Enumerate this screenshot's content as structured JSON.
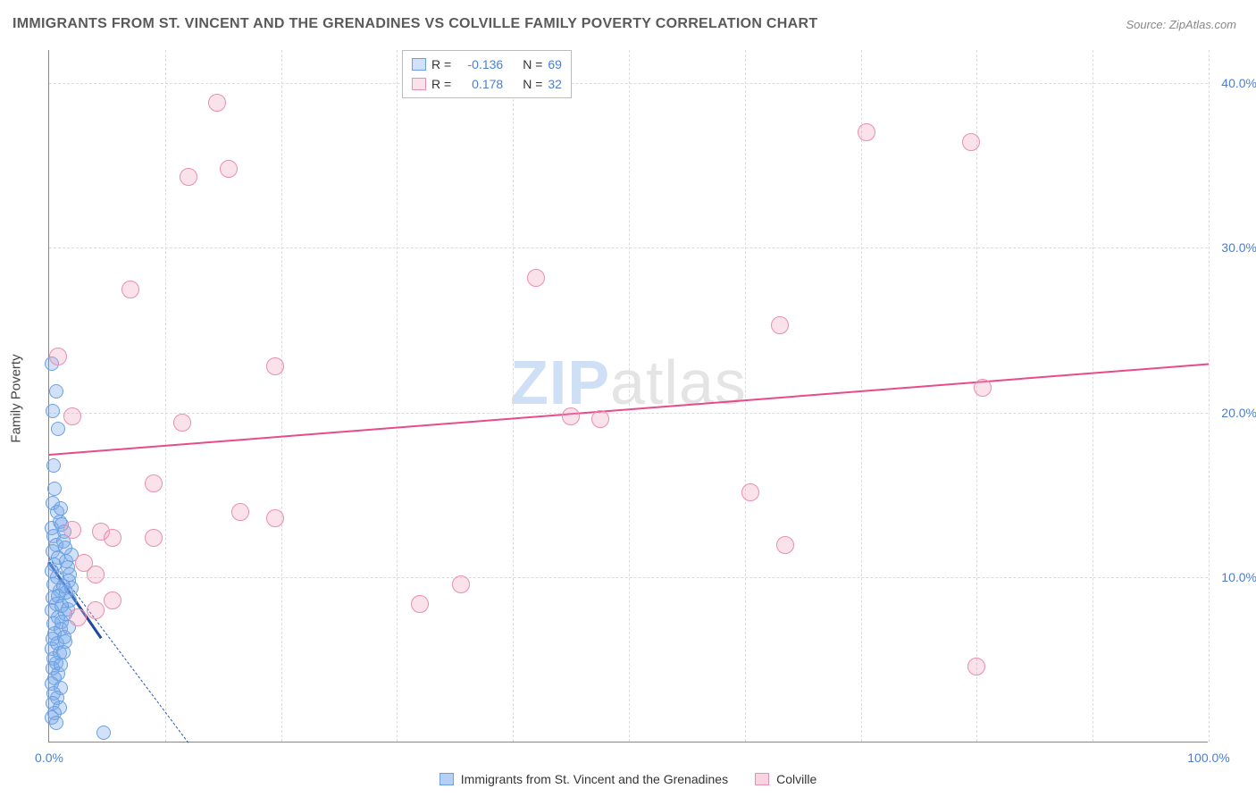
{
  "title": "IMMIGRANTS FROM ST. VINCENT AND THE GRENADINES VS COLVILLE FAMILY POVERTY CORRELATION CHART",
  "source": "Source: ZipAtlas.com",
  "ylabel": "Family Poverty",
  "watermark": {
    "part1": "ZIP",
    "part2": "atlas"
  },
  "chart": {
    "type": "scatter",
    "xlim": [
      0,
      100
    ],
    "ylim": [
      0,
      42
    ],
    "xticks": [
      {
        "v": 0,
        "label": "0.0%"
      },
      {
        "v": 20,
        "label": ""
      },
      {
        "v": 40,
        "label": ""
      },
      {
        "v": 60,
        "label": ""
      },
      {
        "v": 80,
        "label": ""
      },
      {
        "v": 100,
        "label": "100.0%"
      }
    ],
    "yticks": [
      {
        "v": 10,
        "label": "10.0%"
      },
      {
        "v": 20,
        "label": "20.0%"
      },
      {
        "v": 30,
        "label": "30.0%"
      },
      {
        "v": 40,
        "label": "40.0%"
      }
    ],
    "grid_x_steps": [
      10,
      20,
      30,
      40,
      50,
      60,
      70,
      80,
      90,
      100
    ],
    "background_color": "#ffffff",
    "grid_color": "#dcdcdc",
    "axis_color": "#888888",
    "tick_label_color": "#4a7fd6"
  },
  "series": [
    {
      "name": "Immigrants from St. Vincent and the Grenadines",
      "short": "series-a",
      "fill": "rgba(120,170,235,0.35)",
      "stroke": "#6aa0e0",
      "marker_radius": 8,
      "R": "-0.136",
      "N": "69",
      "trend": {
        "x1": 0,
        "y1": 11.2,
        "x2": 12,
        "y2": 0,
        "color": "#2a5bb5",
        "dashed": true
      },
      "trend_solid": {
        "x1": 0,
        "y1": 11.0,
        "x2": 4.5,
        "y2": 6.4,
        "color": "#1f4aa0"
      },
      "points": [
        [
          0.2,
          23.0
        ],
        [
          0.6,
          21.3
        ],
        [
          0.3,
          20.1
        ],
        [
          0.8,
          19.0
        ],
        [
          0.4,
          16.8
        ],
        [
          0.5,
          15.4
        ],
        [
          0.3,
          14.5
        ],
        [
          0.7,
          14.0
        ],
        [
          0.9,
          13.4
        ],
        [
          0.2,
          13.0
        ],
        [
          0.4,
          12.5
        ],
        [
          0.6,
          12.0
        ],
        [
          0.3,
          11.6
        ],
        [
          0.8,
          11.2
        ],
        [
          0.5,
          10.8
        ],
        [
          0.2,
          10.4
        ],
        [
          0.7,
          10.0
        ],
        [
          0.4,
          9.6
        ],
        [
          0.9,
          9.2
        ],
        [
          0.3,
          8.8
        ],
        [
          0.6,
          8.4
        ],
        [
          0.2,
          8.0
        ],
        [
          0.8,
          7.6
        ],
        [
          0.4,
          7.2
        ],
        [
          1.0,
          6.9
        ],
        [
          0.5,
          6.6
        ],
        [
          0.3,
          6.3
        ],
        [
          0.7,
          6.0
        ],
        [
          0.2,
          5.7
        ],
        [
          0.9,
          5.4
        ],
        [
          0.4,
          5.1
        ],
        [
          0.6,
          4.8
        ],
        [
          0.3,
          4.5
        ],
        [
          0.8,
          4.2
        ],
        [
          0.5,
          3.9
        ],
        [
          0.2,
          3.6
        ],
        [
          1.0,
          3.3
        ],
        [
          0.4,
          3.0
        ],
        [
          0.7,
          2.7
        ],
        [
          0.3,
          2.4
        ],
        [
          0.9,
          2.1
        ],
        [
          0.5,
          1.8
        ],
        [
          0.2,
          1.5
        ],
        [
          0.6,
          1.2
        ],
        [
          4.7,
          0.6
        ],
        [
          0.8,
          8.9
        ],
        [
          1.2,
          9.5
        ],
        [
          1.5,
          11.0
        ],
        [
          1.1,
          7.3
        ],
        [
          1.4,
          6.1
        ],
        [
          1.8,
          10.2
        ],
        [
          1.3,
          12.8
        ],
        [
          1.6,
          8.1
        ],
        [
          1.0,
          14.2
        ],
        [
          1.7,
          9.8
        ],
        [
          1.2,
          5.5
        ],
        [
          1.9,
          11.4
        ],
        [
          1.4,
          7.8
        ],
        [
          1.1,
          13.2
        ],
        [
          1.8,
          8.6
        ],
        [
          1.3,
          6.4
        ],
        [
          1.6,
          10.6
        ],
        [
          1.0,
          4.7
        ],
        [
          1.5,
          9.1
        ],
        [
          1.2,
          12.2
        ],
        [
          1.7,
          7.0
        ],
        [
          1.4,
          11.8
        ],
        [
          1.1,
          8.3
        ],
        [
          1.9,
          9.4
        ]
      ]
    },
    {
      "name": "Colville",
      "short": "series-b",
      "fill": "rgba(240,160,185,0.30)",
      "stroke": "#e98fb0",
      "marker_radius": 10,
      "R": "0.178",
      "N": "32",
      "trend": {
        "x1": 0,
        "y1": 17.5,
        "x2": 100,
        "y2": 23.0,
        "color": "#e84a8a",
        "dashed": false
      },
      "points": [
        [
          14.5,
          38.8
        ],
        [
          12.0,
          34.3
        ],
        [
          15.5,
          34.8
        ],
        [
          70.5,
          37.0
        ],
        [
          79.5,
          36.4
        ],
        [
          7.0,
          27.5
        ],
        [
          42.0,
          28.2
        ],
        [
          0.8,
          23.4
        ],
        [
          19.5,
          22.8
        ],
        [
          63.0,
          25.3
        ],
        [
          80.5,
          21.5
        ],
        [
          2.0,
          19.8
        ],
        [
          11.5,
          19.4
        ],
        [
          45.0,
          19.8
        ],
        [
          47.5,
          19.6
        ],
        [
          9.0,
          15.7
        ],
        [
          16.5,
          14.0
        ],
        [
          19.5,
          13.6
        ],
        [
          60.5,
          15.2
        ],
        [
          2.0,
          12.9
        ],
        [
          4.5,
          12.8
        ],
        [
          5.5,
          12.4
        ],
        [
          9.0,
          12.4
        ],
        [
          63.5,
          12.0
        ],
        [
          3.0,
          10.9
        ],
        [
          4.0,
          10.2
        ],
        [
          35.5,
          9.6
        ],
        [
          32.0,
          8.4
        ],
        [
          5.5,
          8.6
        ],
        [
          4.0,
          8.0
        ],
        [
          2.5,
          7.6
        ],
        [
          80.0,
          4.6
        ]
      ]
    }
  ],
  "legend_top": {
    "r_label": "R =",
    "n_label": "N ="
  },
  "legend_bottom": [
    {
      "label": "Immigrants from St. Vincent and the Grenadines",
      "fill": "rgba(120,170,235,0.55)",
      "stroke": "#6aa0e0"
    },
    {
      "label": "Colville",
      "fill": "rgba(240,160,185,0.45)",
      "stroke": "#e98fb0"
    }
  ]
}
